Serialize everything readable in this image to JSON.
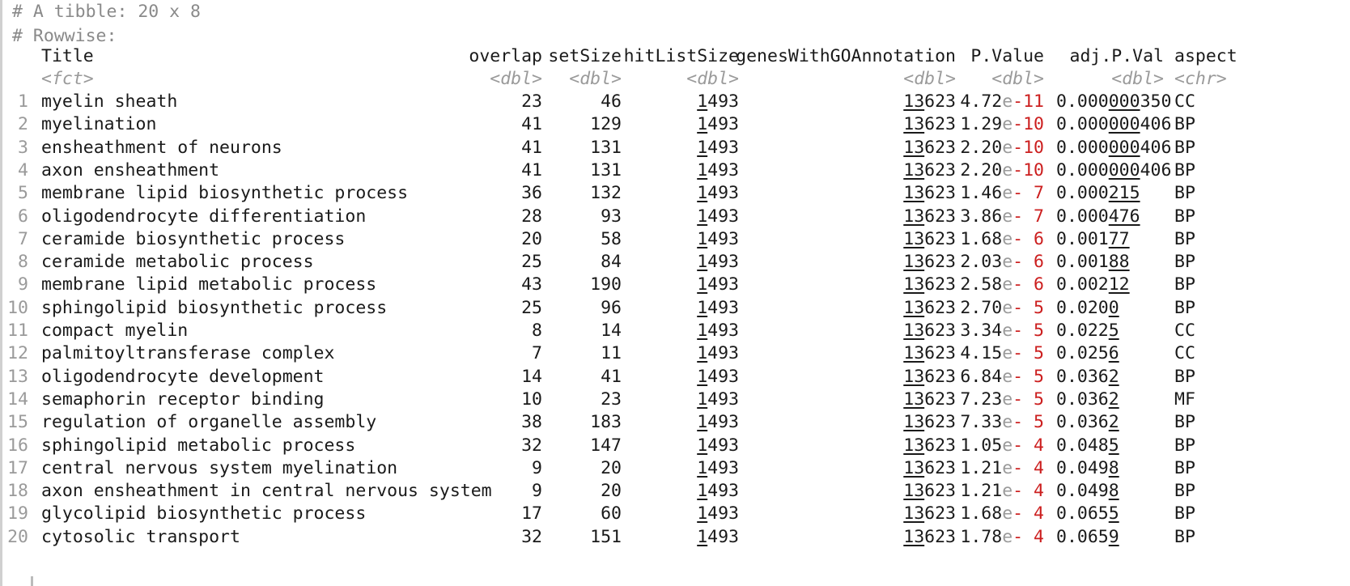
{
  "header": {
    "tibble_line": "# A tibble: 20 x 8",
    "rowwise_line": "# Rowwise:"
  },
  "colors": {
    "text": "#1a1a1a",
    "comment": "#8a8a8a",
    "negative_exponent": "#cc1f1f",
    "muted": "#9a9a9a"
  },
  "columns": [
    {
      "key": "title",
      "label": "Title",
      "type": "<fct>"
    },
    {
      "key": "overlap",
      "label": "overlap",
      "type": "<dbl>"
    },
    {
      "key": "setSize",
      "label": "setSize",
      "type": "<dbl>"
    },
    {
      "key": "hitListSize",
      "label": "hitListSize",
      "type": "<dbl>"
    },
    {
      "key": "genesWithGOAnnotation",
      "label": "genesWithGOAnnotation",
      "type": "<dbl>"
    },
    {
      "key": "pvalue",
      "label": "P.Value",
      "type": "<dbl>"
    },
    {
      "key": "adjp",
      "label": "adj.P.Val",
      "type": "<dbl>"
    },
    {
      "key": "aspect",
      "label": "aspect",
      "type": "<chr>"
    }
  ],
  "rows": [
    {
      "n": "1",
      "title": "myelin sheath",
      "overlap": "23",
      "setSize": "46",
      "hit": [
        "1",
        "493"
      ],
      "genes": [
        "13",
        "623"
      ],
      "pv": {
        "mant": "4.72",
        "exp": "-11"
      },
      "adj": [
        "0.000",
        "000",
        "350"
      ],
      "aspect": "CC"
    },
    {
      "n": "2",
      "title": "myelination",
      "overlap": "41",
      "setSize": "129",
      "hit": [
        "1",
        "493"
      ],
      "genes": [
        "13",
        "623"
      ],
      "pv": {
        "mant": "1.29",
        "exp": "-10"
      },
      "adj": [
        "0.000",
        "000",
        "406"
      ],
      "aspect": "BP"
    },
    {
      "n": "3",
      "title": "ensheathment of neurons",
      "overlap": "41",
      "setSize": "131",
      "hit": [
        "1",
        "493"
      ],
      "genes": [
        "13",
        "623"
      ],
      "pv": {
        "mant": "2.20",
        "exp": "-10"
      },
      "adj": [
        "0.000",
        "000",
        "406"
      ],
      "aspect": "BP"
    },
    {
      "n": "4",
      "title": "axon ensheathment",
      "overlap": "41",
      "setSize": "131",
      "hit": [
        "1",
        "493"
      ],
      "genes": [
        "13",
        "623"
      ],
      "pv": {
        "mant": "2.20",
        "exp": "-10"
      },
      "adj": [
        "0.000",
        "000",
        "406"
      ],
      "aspect": "BP"
    },
    {
      "n": "5",
      "title": "membrane lipid biosynthetic process",
      "overlap": "36",
      "setSize": "132",
      "hit": [
        "1",
        "493"
      ],
      "genes": [
        "13",
        "623"
      ],
      "pv": {
        "mant": "1.46",
        "exp": "- 7"
      },
      "adj": [
        "0.000",
        "215",
        ""
      ],
      "aspect": "BP"
    },
    {
      "n": "6",
      "title": "oligodendrocyte differentiation",
      "overlap": "28",
      "setSize": "93",
      "hit": [
        "1",
        "493"
      ],
      "genes": [
        "13",
        "623"
      ],
      "pv": {
        "mant": "3.86",
        "exp": "- 7"
      },
      "adj": [
        "0.000",
        "476",
        ""
      ],
      "aspect": "BP"
    },
    {
      "n": "7",
      "title": "ceramide biosynthetic process",
      "overlap": "20",
      "setSize": "58",
      "hit": [
        "1",
        "493"
      ],
      "genes": [
        "13",
        "623"
      ],
      "pv": {
        "mant": "1.68",
        "exp": "- 6"
      },
      "adj": [
        "0.001",
        "77",
        ""
      ],
      "aspect": "BP"
    },
    {
      "n": "8",
      "title": "ceramide metabolic process",
      "overlap": "25",
      "setSize": "84",
      "hit": [
        "1",
        "493"
      ],
      "genes": [
        "13",
        "623"
      ],
      "pv": {
        "mant": "2.03",
        "exp": "- 6"
      },
      "adj": [
        "0.001",
        "88",
        ""
      ],
      "aspect": "BP"
    },
    {
      "n": "9",
      "title": "membrane lipid metabolic process",
      "overlap": "43",
      "setSize": "190",
      "hit": [
        "1",
        "493"
      ],
      "genes": [
        "13",
        "623"
      ],
      "pv": {
        "mant": "2.58",
        "exp": "- 6"
      },
      "adj": [
        "0.002",
        "12",
        ""
      ],
      "aspect": "BP"
    },
    {
      "n": "10",
      "title": "sphingolipid biosynthetic process",
      "overlap": "25",
      "setSize": "96",
      "hit": [
        "1",
        "493"
      ],
      "genes": [
        "13",
        "623"
      ],
      "pv": {
        "mant": "2.70",
        "exp": "- 5"
      },
      "adj": [
        "0.020",
        "0",
        ""
      ],
      "aspect": "BP"
    },
    {
      "n": "11",
      "title": "compact myelin",
      "overlap": "8",
      "setSize": "14",
      "hit": [
        "1",
        "493"
      ],
      "genes": [
        "13",
        "623"
      ],
      "pv": {
        "mant": "3.34",
        "exp": "- 5"
      },
      "adj": [
        "0.022",
        "5",
        ""
      ],
      "aspect": "CC"
    },
    {
      "n": "12",
      "title": "palmitoyltransferase complex",
      "overlap": "7",
      "setSize": "11",
      "hit": [
        "1",
        "493"
      ],
      "genes": [
        "13",
        "623"
      ],
      "pv": {
        "mant": "4.15",
        "exp": "- 5"
      },
      "adj": [
        "0.025",
        "6",
        ""
      ],
      "aspect": "CC"
    },
    {
      "n": "13",
      "title": "oligodendrocyte development",
      "overlap": "14",
      "setSize": "41",
      "hit": [
        "1",
        "493"
      ],
      "genes": [
        "13",
        "623"
      ],
      "pv": {
        "mant": "6.84",
        "exp": "- 5"
      },
      "adj": [
        "0.036",
        "2",
        ""
      ],
      "aspect": "BP"
    },
    {
      "n": "14",
      "title": "semaphorin receptor binding",
      "overlap": "10",
      "setSize": "23",
      "hit": [
        "1",
        "493"
      ],
      "genes": [
        "13",
        "623"
      ],
      "pv": {
        "mant": "7.23",
        "exp": "- 5"
      },
      "adj": [
        "0.036",
        "2",
        ""
      ],
      "aspect": "MF"
    },
    {
      "n": "15",
      "title": "regulation of organelle assembly",
      "overlap": "38",
      "setSize": "183",
      "hit": [
        "1",
        "493"
      ],
      "genes": [
        "13",
        "623"
      ],
      "pv": {
        "mant": "7.33",
        "exp": "- 5"
      },
      "adj": [
        "0.036",
        "2",
        ""
      ],
      "aspect": "BP"
    },
    {
      "n": "16",
      "title": "sphingolipid metabolic process",
      "overlap": "32",
      "setSize": "147",
      "hit": [
        "1",
        "493"
      ],
      "genes": [
        "13",
        "623"
      ],
      "pv": {
        "mant": "1.05",
        "exp": "- 4"
      },
      "adj": [
        "0.048",
        "5",
        ""
      ],
      "aspect": "BP"
    },
    {
      "n": "17",
      "title": "central nervous system myelination",
      "overlap": "9",
      "setSize": "20",
      "hit": [
        "1",
        "493"
      ],
      "genes": [
        "13",
        "623"
      ],
      "pv": {
        "mant": "1.21",
        "exp": "- 4"
      },
      "adj": [
        "0.049",
        "8",
        ""
      ],
      "aspect": "BP"
    },
    {
      "n": "18",
      "title": "axon ensheathment in central nervous system",
      "overlap": "9",
      "setSize": "20",
      "hit": [
        "1",
        "493"
      ],
      "genes": [
        "13",
        "623"
      ],
      "pv": {
        "mant": "1.21",
        "exp": "- 4"
      },
      "adj": [
        "0.049",
        "8",
        ""
      ],
      "aspect": "BP"
    },
    {
      "n": "19",
      "title": "glycolipid biosynthetic process",
      "overlap": "17",
      "setSize": "60",
      "hit": [
        "1",
        "493"
      ],
      "genes": [
        "13",
        "623"
      ],
      "pv": {
        "mant": "1.68",
        "exp": "- 4"
      },
      "adj": [
        "0.065",
        "5",
        ""
      ],
      "aspect": "BP"
    },
    {
      "n": "20",
      "title": "cytosolic transport",
      "overlap": "32",
      "setSize": "151",
      "hit": [
        "1",
        "493"
      ],
      "genes": [
        "13",
        "623"
      ],
      "pv": {
        "mant": "1.78",
        "exp": "- 4"
      },
      "adj": [
        "0.065",
        "9",
        ""
      ],
      "aspect": "BP"
    }
  ]
}
